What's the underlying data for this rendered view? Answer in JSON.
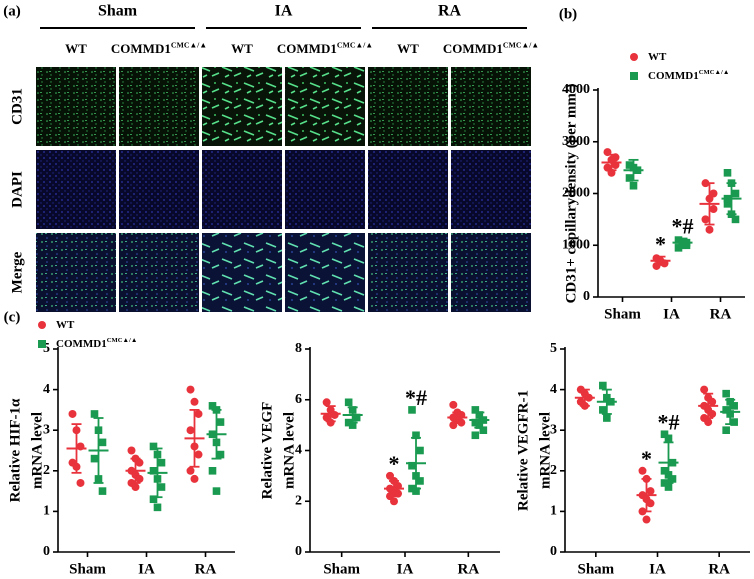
{
  "panel_labels": [
    "(a)",
    "(b)",
    "(c)"
  ],
  "image_grid": {
    "groups": [
      {
        "label": "Sham",
        "columns": [
          {
            "name": "WT"
          },
          {
            "name": "COMMD1",
            "superscript": "CMC▲/▲"
          }
        ]
      },
      {
        "label": "IA",
        "columns": [
          {
            "name": "WT"
          },
          {
            "name": "COMMD1",
            "superscript": "CMC▲/▲"
          }
        ]
      },
      {
        "label": "RA",
        "columns": [
          {
            "name": "WT"
          },
          {
            "name": "COMMD1",
            "superscript": "CMC▲/▲"
          }
        ]
      }
    ],
    "rows": [
      {
        "label": "CD31",
        "color": "#1a9a3a"
      },
      {
        "label": "DAPI",
        "color": "#2040b0"
      },
      {
        "label": "Merge",
        "color": "#000000"
      }
    ]
  },
  "chart_data": [
    {
      "type": "dot",
      "y_label": [
        "CD31+ capillarydensity (per mm²)"
      ],
      "categories": [
        "Sham",
        "IA",
        "RA"
      ],
      "ylim": [
        0,
        4000
      ],
      "yticks": [
        0,
        1000,
        2000,
        3000,
        4000
      ],
      "legend": true,
      "series": [
        {
          "name": "WT",
          "color": "#e8323c",
          "values": [
            [
              2800,
              2650,
              2550,
              2500,
              2400,
              2700
            ],
            [
              750,
              700,
              650,
              600
            ],
            [
              2200,
              1900,
              1700,
              1500,
              1300,
              2000
            ]
          ],
          "means": [
            2600,
            700,
            1800
          ],
          "sds": [
            150,
            80,
            400
          ],
          "annotations": [
            null,
            "*",
            null
          ]
        },
        {
          "name": "COMMD1",
          "superscript": "CMC▲/▲",
          "color": "#1a9a50",
          "values": [
            [
              2550,
              2500,
              2450,
              2300,
              2150
            ],
            [
              1100,
              1050,
              1000,
              950,
              1000,
              1050
            ],
            [
              2400,
              2200,
              2000,
              1800,
              1600,
              1500,
              1900
            ]
          ],
          "means": [
            2450,
            1050,
            1900
          ],
          "sds": [
            200,
            80,
            300
          ],
          "annotations": [
            null,
            "*#",
            null
          ]
        }
      ]
    },
    {
      "type": "dot",
      "y_label": [
        "Relative HIF-1α",
        "mRNA level"
      ],
      "categories": [
        "Sham",
        "IA",
        "RA"
      ],
      "ylim": [
        0,
        5
      ],
      "yticks": [
        0,
        1,
        2,
        3,
        4,
        5
      ],
      "legend": true,
      "series": [
        {
          "name": "WT",
          "color": "#e8323c",
          "values": [
            [
              3.4,
              3.0,
              2.6,
              2.2,
              2.1,
              1.7
            ],
            [
              2.5,
              2.3,
              2.2,
              2.0,
              1.9,
              1.8,
              1.7,
              1.6
            ],
            [
              4.0,
              3.7,
              3.4,
              3.0,
              2.6,
              2.4,
              2.0,
              1.8
            ]
          ],
          "means": [
            2.55,
            2.0,
            2.8
          ],
          "sds": [
            0.6,
            0.3,
            0.7
          ],
          "annotations": [
            null,
            null,
            null
          ]
        },
        {
          "name": "COMMD1",
          "superscript": "CMC▲/▲",
          "color": "#1a9a50",
          "values": [
            [
              3.4,
              3.0,
              2.7,
              2.3,
              1.8,
              1.5
            ],
            [
              2.6,
              2.4,
              2.2,
              2.0,
              1.8,
              1.6,
              1.3,
              1.1
            ],
            [
              3.6,
              3.5,
              3.2,
              2.9,
              2.7,
              2.4,
              2.0,
              1.5
            ]
          ],
          "means": [
            2.5,
            1.95,
            2.9
          ],
          "sds": [
            0.8,
            0.6,
            0.6
          ],
          "annotations": [
            null,
            null,
            null
          ]
        }
      ]
    },
    {
      "type": "dot",
      "y_label": [
        "Relative VEGF",
        "mRNA level"
      ],
      "categories": [
        "Sham",
        "IA",
        "RA"
      ],
      "ylim": [
        0,
        8
      ],
      "yticks": [
        0,
        2,
        4,
        6,
        8
      ],
      "legend": false,
      "series": [
        {
          "name": "WT",
          "color": "#e8323c",
          "values": [
            [
              5.9,
              5.6,
              5.4,
              5.3,
              5.1
            ],
            [
              3.0,
              2.8,
              2.6,
              2.5,
              2.4,
              2.3,
              2.2,
              2.0
            ],
            [
              5.8,
              5.5,
              5.4,
              5.3,
              5.2,
              5.1,
              5.0
            ]
          ],
          "means": [
            5.45,
            2.5,
            5.3
          ],
          "sds": [
            0.3,
            0.3,
            0.2
          ],
          "annotations": [
            null,
            "*",
            null
          ]
        },
        {
          "name": "COMMD1",
          "superscript": "CMC▲/▲",
          "color": "#1a9a50",
          "values": [
            [
              5.9,
              5.6,
              5.3,
              5.1,
              5.0
            ],
            [
              5.6,
              4.6,
              4.0,
              3.4,
              3.0,
              2.8,
              2.5,
              2.4
            ],
            [
              5.6,
              5.4,
              5.2,
              5.1,
              5.0,
              4.8,
              4.6
            ]
          ],
          "means": [
            5.4,
            3.5,
            5.2
          ],
          "sds": [
            0.3,
            1.0,
            0.3
          ],
          "annotations": [
            null,
            "*#",
            null
          ]
        }
      ]
    },
    {
      "type": "dot",
      "y_label": [
        "Relative VEGFR-1",
        "mRNA level"
      ],
      "categories": [
        "Sham",
        "IA",
        "RA"
      ],
      "ylim": [
        0,
        5
      ],
      "yticks": [
        0,
        1,
        2,
        3,
        4,
        5
      ],
      "legend": false,
      "series": [
        {
          "name": "WT",
          "color": "#e8323c",
          "values": [
            [
              4.0,
              3.9,
              3.8,
              3.7,
              3.6
            ],
            [
              2.0,
              1.8,
              1.5,
              1.4,
              1.3,
              1.2,
              1.0,
              0.8
            ],
            [
              4.0,
              3.8,
              3.7,
              3.6,
              3.5,
              3.4,
              3.3,
              3.2
            ]
          ],
          "means": [
            3.8,
            1.4,
            3.6
          ],
          "sds": [
            0.2,
            0.4,
            0.3
          ],
          "annotations": [
            null,
            "*",
            null
          ]
        },
        {
          "name": "COMMD1",
          "superscript": "CMC▲/▲",
          "color": "#1a9a50",
          "values": [
            [
              4.1,
              3.8,
              3.7,
              3.5,
              3.3
            ],
            [
              2.9,
              2.8,
              2.2,
              2.0,
              1.9,
              1.8,
              1.7,
              1.6
            ],
            [
              3.9,
              3.7,
              3.6,
              3.5,
              3.4,
              3.2,
              3.0
            ]
          ],
          "means": [
            3.7,
            2.2,
            3.45
          ],
          "sds": [
            0.3,
            0.5,
            0.3
          ],
          "annotations": [
            null,
            "*#",
            null
          ]
        }
      ]
    }
  ]
}
